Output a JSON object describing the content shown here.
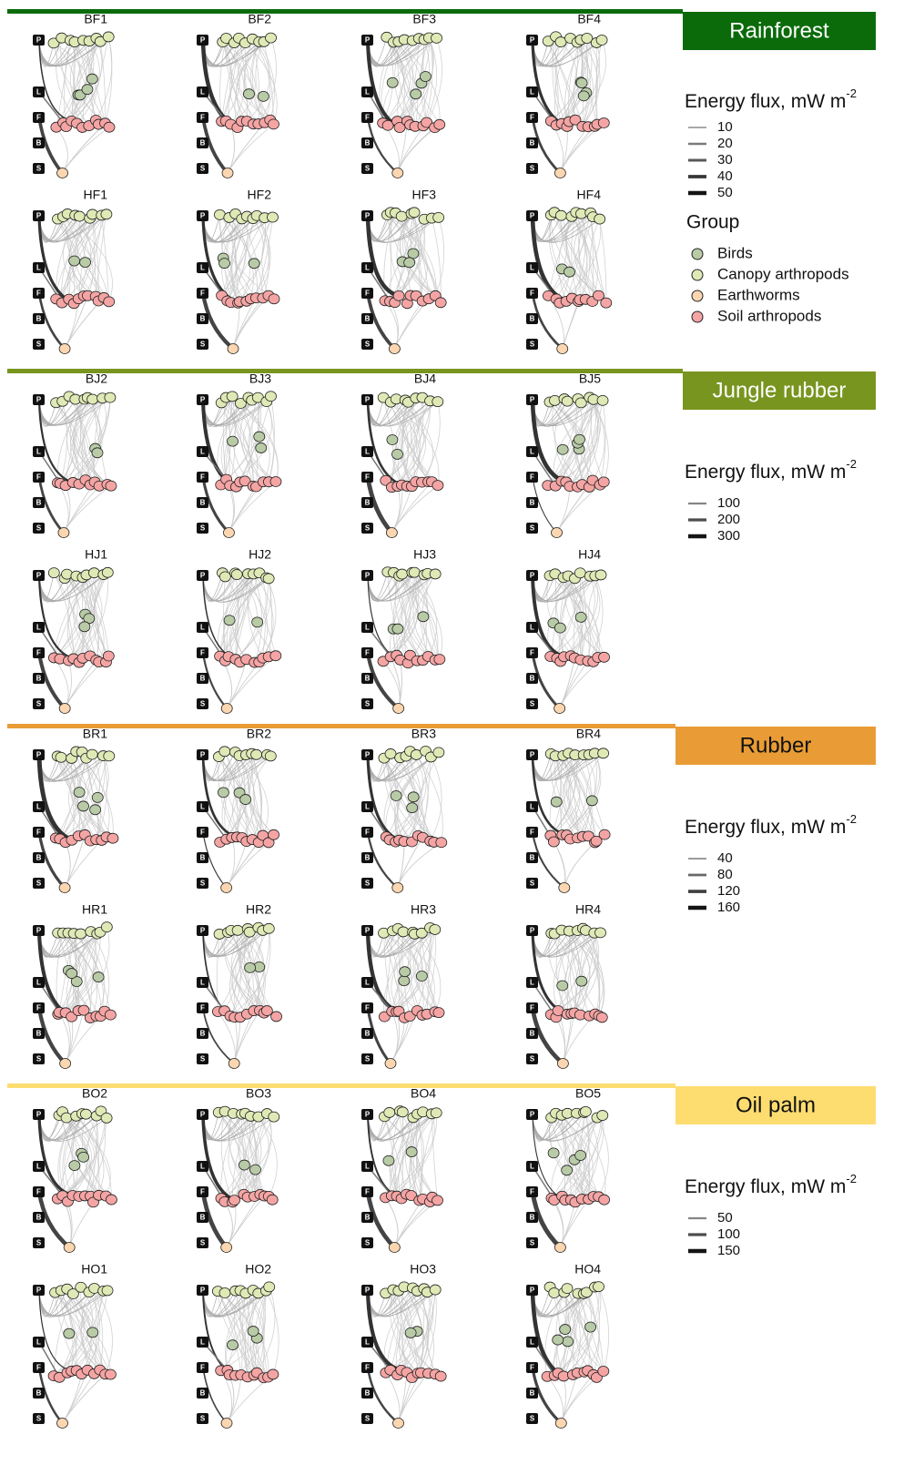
{
  "levels": [
    "P",
    "L",
    "F",
    "B",
    "S"
  ],
  "groups": {
    "title": "Group",
    "items": [
      {
        "name": "Birds",
        "color": "#b8cba6"
      },
      {
        "name": "Canopy arthropods",
        "color": "#dfe9b6"
      },
      {
        "name": "Earthworms",
        "color": "#fbd6b0"
      },
      {
        "name": "Soil arthropods",
        "color": "#f5a4a4"
      }
    ]
  },
  "sections": [
    {
      "title": "Rainforest",
      "color": "#0b6b0b",
      "text_color": "#ffffff",
      "panels": [
        "BF1",
        "BF2",
        "BF3",
        "BF4",
        "HF1",
        "HF2",
        "HF3",
        "HF4"
      ],
      "legend": {
        "title": "Energy flux, mW m",
        "exponent": "-2",
        "values": [
          10,
          20,
          30,
          40,
          50
        ]
      }
    },
    {
      "title": "Jungle rubber",
      "color": "#78951f",
      "text_color": "#ffffff",
      "panels": [
        "BJ2",
        "BJ3",
        "BJ4",
        "BJ5",
        "HJ1",
        "HJ2",
        "HJ3",
        "HJ4"
      ],
      "legend": {
        "title": "Energy flux, mW m",
        "exponent": "-2",
        "values": [
          100,
          200,
          300
        ]
      }
    },
    {
      "title": "Rubber",
      "color": "#e99c35",
      "text_color": "#111111",
      "panels": [
        "BR1",
        "BR2",
        "BR3",
        "BR4",
        "HR1",
        "HR2",
        "HR3",
        "HR4"
      ],
      "legend": {
        "title": "Energy flux, mW m",
        "exponent": "-2",
        "values": [
          40,
          80,
          120,
          160
        ]
      }
    },
    {
      "title": "Oil palm",
      "color": "#fddc70",
      "text_color": "#111111",
      "panels": [
        "BO2",
        "BO3",
        "BO4",
        "BO5",
        "HO1",
        "HO2",
        "HO3",
        "HO4"
      ],
      "legend": {
        "title": "Energy flux, mW m",
        "exponent": "-2",
        "values": [
          50,
          100,
          150
        ]
      }
    }
  ]
}
